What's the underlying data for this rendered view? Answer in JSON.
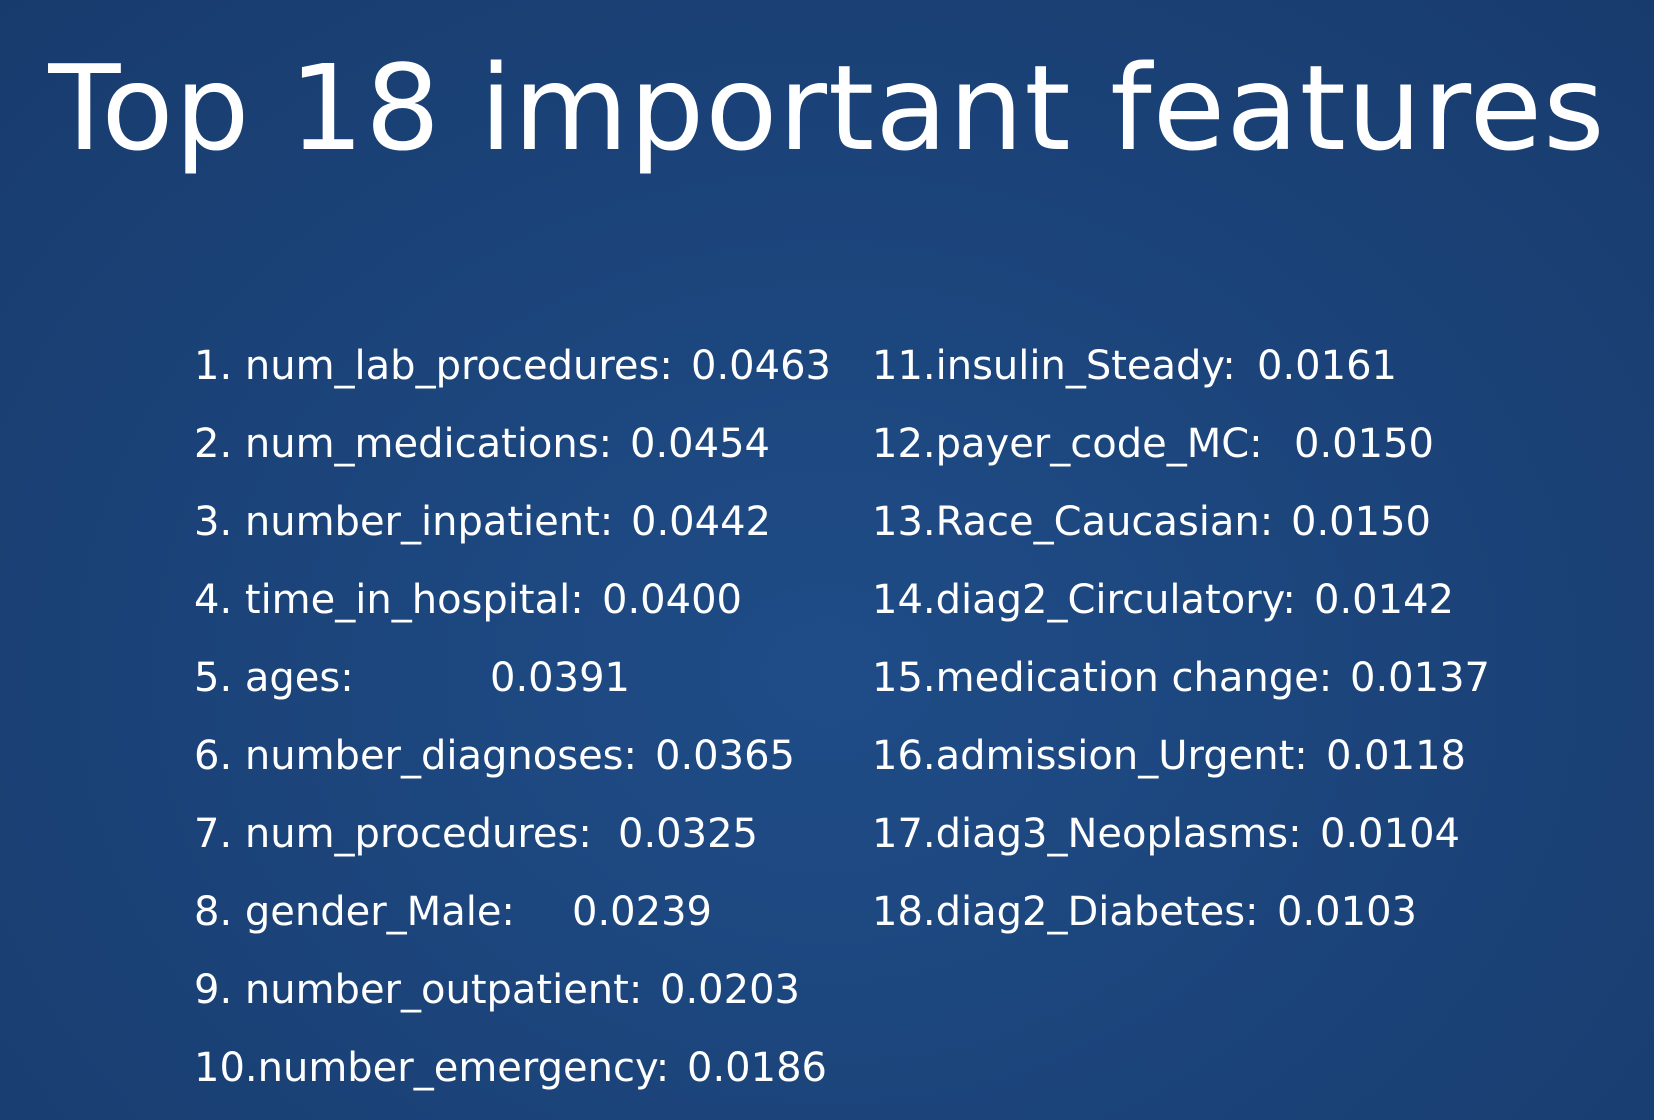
{
  "title": "Top 18 important features",
  "columns": {
    "left": [
      {
        "label": "1. num_lab_procedures:",
        "value": "0.0463"
      },
      {
        "label": "2. num_medications:",
        "value": "0.0454"
      },
      {
        "label": "3. number_inpatient:",
        "value": "0.0442"
      },
      {
        "label": "4. time_in_hospital:",
        "value": "0.0400"
      },
      {
        "label": "5. ages:",
        "value": "0.0391"
      },
      {
        "label": "6. number_diagnoses:",
        "value": "0.0365"
      },
      {
        "label": "7. num_procedures:",
        "value": "0.0325"
      },
      {
        "label": "8. gender_Male:",
        "value": "0.0239"
      },
      {
        "label": "9. number_outpatient:",
        "value": "0.0203"
      },
      {
        "label": "10.number_emergency:",
        "value": "0.0186"
      }
    ],
    "right": [
      {
        "label": "11.insulin_Steady:",
        "value": "0.0161"
      },
      {
        "label": "12.payer_code_MC:",
        "value": "0.0150"
      },
      {
        "label": "13.Race_Caucasian:",
        "value": "0.0150"
      },
      {
        "label": "14.diag2_Circulatory:",
        "value": "0.0142"
      },
      {
        "label": "15.medication change:",
        "value": "0.0137"
      },
      {
        "label": "16.admission_Urgent:",
        "value": "0.0118"
      },
      {
        "label": "17.diag3_Neoplasms:",
        "value": "0.0104"
      },
      {
        "label": "18.diag2_Diabetes:",
        "value": "0.0103"
      }
    ]
  }
}
